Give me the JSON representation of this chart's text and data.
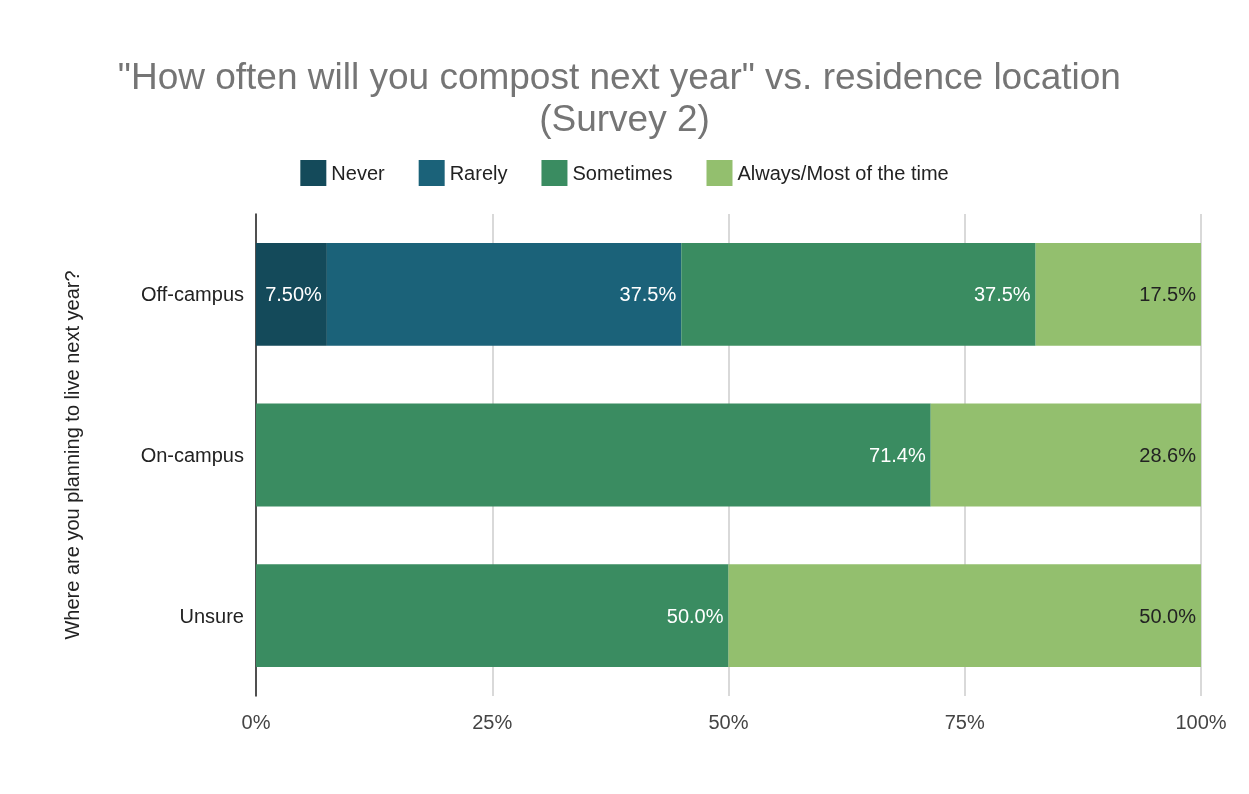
{
  "chart_data": {
    "type": "bar",
    "orientation": "horizontal",
    "stacked": true,
    "title": "\"How often will you compost next year\" vs. residence location (Survey 2)",
    "ylabel": "Where are you planning to live next year?",
    "categories": [
      "Off-campus",
      "On-campus",
      "Unsure"
    ],
    "series": [
      {
        "name": "Never",
        "color": "#144a5a",
        "values": [
          7.5,
          null,
          null
        ],
        "value_labels": [
          "7.50%",
          null,
          null
        ]
      },
      {
        "name": "Rarely",
        "color": "#1b6279",
        "values": [
          37.5,
          null,
          null
        ],
        "value_labels": [
          "37.5%",
          null,
          null
        ]
      },
      {
        "name": "Sometimes",
        "color": "#3a8c61",
        "values": [
          37.5,
          71.4,
          50.0
        ],
        "value_labels": [
          "37.5%",
          "71.4%",
          "50.0%"
        ]
      },
      {
        "name": "Always/Most of the time",
        "color": "#93bf6e",
        "values": [
          17.5,
          28.6,
          50.0
        ],
        "value_labels": [
          "17.5%",
          "28.6%",
          "50.0%"
        ]
      }
    ],
    "xlim": [
      0,
      100
    ],
    "xticks": [
      {
        "value": 0,
        "label": "0%"
      },
      {
        "value": 25,
        "label": "25%"
      },
      {
        "value": 50,
        "label": "50%"
      },
      {
        "value": 75,
        "label": "75%"
      },
      {
        "value": 100,
        "label": "100%"
      }
    ],
    "grid": "x",
    "legend": "top"
  }
}
